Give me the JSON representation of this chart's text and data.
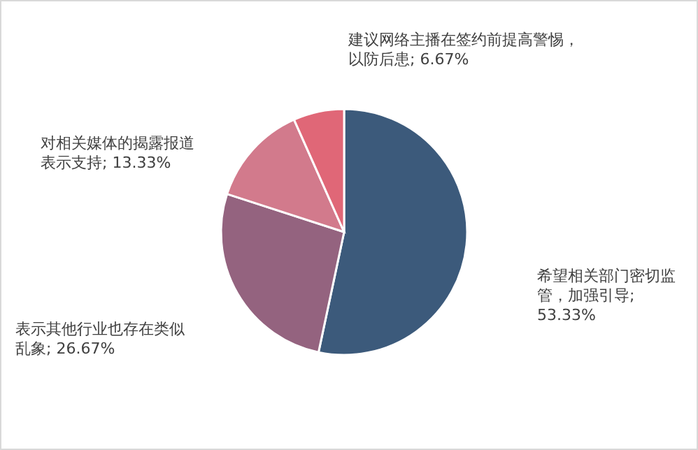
{
  "chart_data": {
    "type": "pie",
    "categories": [
      "希望相关部门密切监管，加强引导; 53.33%",
      "表示其他行业也存在类似乱象; 26.67%",
      "对相关媒体的揭露报道表示支持; 13.33%",
      "建议网络主播在签约前提高警惕，以防后患; 6.67%"
    ],
    "values": [
      53.33,
      26.67,
      13.33,
      6.67
    ],
    "colors": [
      "#3c5a7b",
      "#94637f",
      "#d27a8c",
      "#e06777"
    ]
  }
}
